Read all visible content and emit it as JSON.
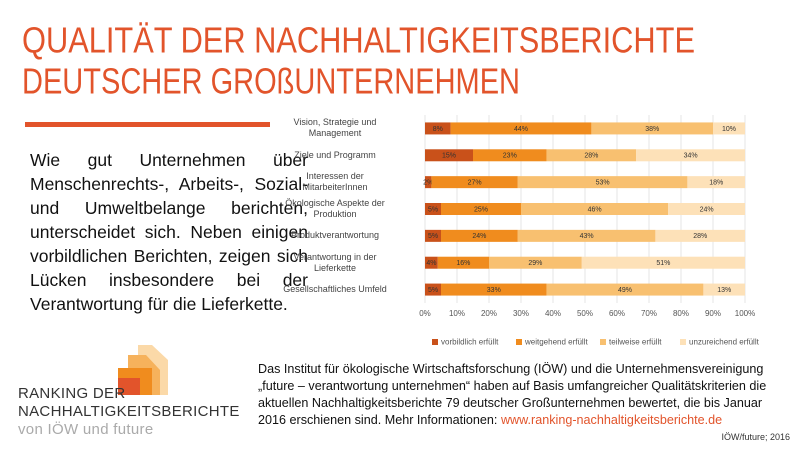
{
  "slide": {
    "title": [
      "QUALITÄT DER NACHHALTIGKEITSBERICHTE",
      "DEUTSCHER GROßUNTERNEHMEN"
    ],
    "intro": "Wie gut Unternehmen über Menschenrechts-, Arbeits-, Sozial- und Umweltbelange berichten, unterscheidet sich. Neben einigen vorbildlichen Berichten, zeigen sich Lücken insbesondere bei der Verantwortung für die Lieferkette.",
    "logo": [
      "RANKING DER",
      "NACHHALTIGKEITSBERICHTE",
      "von IÖW und future"
    ],
    "description": "Das Institut für ökologische Wirtschaftsforschung (IÖW) und die Unternehmensvereinigung „future – verantwortung unternehmen“ haben auf Basis umfangreicher Qualitätskriterien die aktuellen Nachhaltigkeitsberichte 79 deutscher Großunternehmen bewertet, die bis Januar 2016 erschienen sind. Mehr Informationen:",
    "link": "www.ranking-nachhaltigkeitsberichte.de",
    "source": "IÖW/future; 2016"
  },
  "chart_data": {
    "type": "bar",
    "orientation": "horizontal",
    "stacked": true,
    "categories": [
      "Vision, Strategie und Management",
      "Ziele und Programm",
      "Interessen der MitarbeiterInnen",
      "Ökologische Aspekte der Produktion",
      "Produktverantwortung",
      "Verantwortung in der Lieferkette",
      "Gesellschaftliches Umfeld"
    ],
    "series": [
      {
        "name": "vorbildlich erfüllt",
        "color": "#c9511a",
        "values": [
          8,
          15,
          2,
          5,
          5,
          4,
          5
        ],
        "value_labels": [
          "8%",
          "15%",
          "2%",
          "5%",
          "5%",
          "4%",
          "5%"
        ]
      },
      {
        "name": "weitgehend erfüllt",
        "color": "#f08c1e",
        "values": [
          44,
          23,
          27,
          25,
          24,
          16,
          33
        ],
        "value_labels": [
          "44%",
          "23%",
          "27%",
          "25%",
          "24%",
          "16%",
          "33%"
        ]
      },
      {
        "name": "teilweise erfüllt",
        "color": "#f8c070",
        "values": [
          38,
          28,
          53,
          46,
          43,
          29,
          49
        ],
        "value_labels": [
          "38%",
          "28%",
          "53%",
          "46%",
          "43%",
          "29%",
          "49%"
        ]
      },
      {
        "name": "unzureichend erfüllt",
        "color": "#fde1b8",
        "values": [
          10,
          34,
          18,
          24,
          28,
          51,
          13
        ],
        "value_labels": [
          "10%",
          "34%",
          "18%",
          "24%",
          "28%",
          "51%",
          "13%"
        ]
      }
    ],
    "xlim": [
      0,
      100
    ],
    "xticks": [
      {
        "value": 0,
        "label": "0%"
      },
      {
        "value": 10,
        "label": "10%"
      },
      {
        "value": 20,
        "label": "20%"
      },
      {
        "value": 30,
        "label": "30%"
      },
      {
        "value": 40,
        "label": "40%"
      },
      {
        "value": 50,
        "label": "50%"
      },
      {
        "value": 60,
        "label": "60%"
      },
      {
        "value": 70,
        "label": "70%"
      },
      {
        "value": 80,
        "label": "80%"
      },
      {
        "value": 90,
        "label": "90%"
      },
      {
        "value": 100,
        "label": "100%"
      }
    ],
    "grid": true,
    "legend": "bottom"
  }
}
